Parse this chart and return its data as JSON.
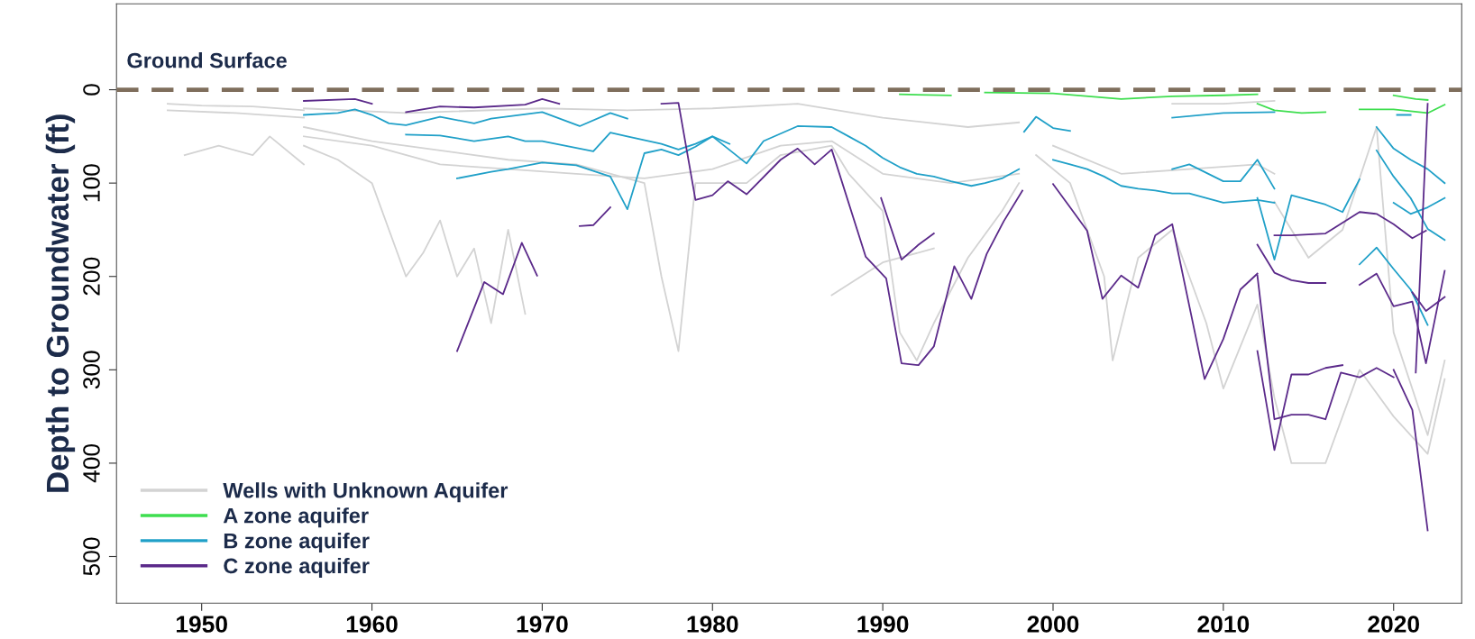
{
  "chart_data": {
    "type": "line",
    "xlabel": null,
    "ylabel": "Depth to Groundwater (ft)",
    "xlim": [
      1945,
      2024
    ],
    "xticks": [
      1950,
      1960,
      1970,
      1980,
      1990,
      2000,
      2010,
      2020
    ],
    "ylim": [
      550,
      -92
    ],
    "yticks": [
      0,
      100,
      200,
      300,
      400,
      500
    ],
    "grid": false,
    "legend": "bottom left",
    "marker": "none",
    "ref_lines": [
      {
        "axis": "y",
        "value": 0,
        "label": "Ground Surface",
        "color": "#7f6e5c",
        "line_style": "dashed"
      }
    ],
    "series": [
      {
        "name": "Wells with Unknown Aquifer",
        "color": "#d3d3d3",
        "x": [
          1948,
          1950,
          1953,
          1956
        ],
        "values": [
          15,
          17,
          18,
          22
        ]
      },
      {
        "color": "#d3d3d3",
        "x": [
          1948,
          1952,
          1956
        ],
        "values": [
          22,
          25,
          30
        ]
      },
      {
        "color": "#d3d3d3",
        "x": [
          1949,
          1951,
          1953,
          1954,
          1956
        ],
        "values": [
          70,
          60,
          70,
          50,
          80
        ]
      },
      {
        "color": "#d3d3d3",
        "x": [
          1956,
          1958,
          1960,
          1961,
          1962,
          1963,
          1964,
          1965,
          1966,
          1967,
          1968,
          1969
        ],
        "values": [
          60,
          75,
          100,
          150,
          200,
          175,
          140,
          200,
          170,
          250,
          150,
          240
        ]
      },
      {
        "color": "#d3d3d3",
        "x": [
          1956,
          1960,
          1964,
          1968,
          1972,
          1976,
          1977,
          1978,
          1979,
          1982,
          1984,
          1987,
          1988,
          1990,
          1991,
          1992,
          1993,
          1995,
          1997,
          1998
        ],
        "values": [
          40,
          55,
          65,
          75,
          80,
          100,
          200,
          280,
          100,
          100,
          70,
          60,
          90,
          130,
          260,
          290,
          250,
          180,
          130,
          100
        ]
      },
      {
        "color": "#d3d3d3",
        "x": [
          1956,
          1962,
          1970,
          1975,
          1980,
          1985,
          1990,
          1995,
          1998
        ],
        "values": [
          20,
          25,
          20,
          22,
          20,
          15,
          30,
          40,
          35
        ]
      },
      {
        "color": "#d3d3d3",
        "x": [
          1956,
          1960,
          1964,
          1968,
          1972,
          1976,
          1980,
          1984,
          1987,
          1990,
          1994,
          1998
        ],
        "values": [
          50,
          60,
          80,
          85,
          90,
          95,
          85,
          60,
          55,
          90,
          100,
          90
        ]
      },
      {
        "color": "#d3d3d3",
        "x": [
          1999,
          2001,
          2003,
          2003.5,
          2005,
          2007,
          2009,
          2010,
          2012,
          2013,
          2014,
          2016,
          2018,
          2020,
          2022,
          2023
        ],
        "values": [
          70,
          100,
          200,
          290,
          180,
          150,
          250,
          320,
          230,
          330,
          400,
          400,
          300,
          350,
          390,
          310
        ]
      },
      {
        "color": "#d3d3d3",
        "x": [
          2000,
          2004,
          2008,
          2012,
          2013
        ],
        "values": [
          60,
          90,
          85,
          80,
          90
        ]
      },
      {
        "color": "#d3d3d3",
        "x": [
          2013,
          2015,
          2017,
          2019,
          2020,
          2022,
          2023
        ],
        "values": [
          120,
          180,
          150,
          40,
          260,
          370,
          290
        ]
      },
      {
        "color": "#d3d3d3",
        "x": [
          2007,
          2010,
          2013
        ],
        "values": [
          15,
          15,
          12
        ]
      },
      {
        "color": "#d3d3d3",
        "x": [
          1987,
          1990,
          1993
        ],
        "values": [
          220,
          185,
          170
        ]
      },
      {
        "name": "A zone aquifer",
        "color": "#3ede4f",
        "x": [
          1991,
          1994
        ],
        "values": [
          5,
          6
        ]
      },
      {
        "color": "#3ede4f",
        "x": [
          1996,
          2000,
          2004,
          2007,
          2010,
          2012
        ],
        "values": [
          3,
          4,
          10,
          7,
          6,
          5
        ]
      },
      {
        "color": "#3ede4f",
        "x": [
          2012,
          2013,
          2014.6,
          2016
        ],
        "values": [
          15,
          22,
          25,
          24
        ]
      },
      {
        "color": "#3ede4f",
        "x": [
          2018,
          2020,
          2022,
          2023
        ],
        "values": [
          21,
          21,
          25,
          16
        ]
      },
      {
        "color": "#3ede4f",
        "x": [
          2020,
          2021.3,
          2022
        ],
        "values": [
          6,
          10,
          11
        ]
      },
      {
        "name": "B zone aquifer",
        "color": "#20a0c8",
        "x": [
          1956,
          1958,
          1959,
          1960,
          1961,
          1962,
          1964,
          1966,
          1967,
          1970,
          1972.2,
          1974,
          1975
        ],
        "values": [
          27,
          25,
          21,
          27,
          36,
          38,
          29,
          36,
          31,
          24,
          39,
          25,
          31
        ]
      },
      {
        "color": "#20a0c8",
        "x": [
          1962,
          1964,
          1966,
          1968,
          1969,
          1970,
          1973,
          1974,
          1975,
          1977,
          1978,
          1979,
          1980,
          1981
        ],
        "values": [
          48,
          49,
          55,
          50,
          55,
          55,
          66,
          46,
          50,
          58,
          64,
          58,
          50,
          58
        ]
      },
      {
        "color": "#20a0c8",
        "x": [
          1965,
          1967,
          1968,
          1970,
          1972,
          1974,
          1975,
          1976,
          1977,
          1978,
          1979,
          1980,
          1982,
          1983,
          1984,
          1985,
          1987,
          1988,
          1989,
          1990,
          1991,
          1992,
          1993,
          1994,
          1995.2,
          1996,
          1997,
          1998
        ],
        "values": [
          95,
          88,
          85,
          78,
          81,
          93,
          128,
          68,
          64,
          70,
          61,
          50,
          79,
          55,
          47,
          39,
          40,
          50,
          60,
          73,
          83,
          90,
          93,
          98,
          103,
          100,
          95,
          85
        ]
      },
      {
        "color": "#20a0c8",
        "x": [
          1998.3,
          1999,
          2000,
          2001
        ],
        "values": [
          45,
          29,
          41,
          44
        ]
      },
      {
        "color": "#20a0c8",
        "x": [
          2000,
          2001,
          2002,
          2003,
          2004,
          2005,
          2006,
          2007,
          2008,
          2010,
          2012,
          2013
        ],
        "values": [
          75,
          80,
          85,
          93,
          103,
          106,
          108,
          111,
          111,
          121,
          118,
          121
        ]
      },
      {
        "color": "#20a0c8",
        "x": [
          2007,
          2008,
          2010,
          2011,
          2012,
          2013
        ],
        "values": [
          85,
          80,
          98,
          98,
          75,
          106
        ]
      },
      {
        "color": "#20a0c8",
        "x": [
          2012,
          2013,
          2014,
          2016,
          2017,
          2018
        ],
        "values": [
          116,
          182,
          113,
          123,
          131,
          96
        ]
      },
      {
        "color": "#20a0c8",
        "x": [
          2019,
          2020,
          2021,
          2022,
          2023
        ],
        "values": [
          40,
          63,
          75,
          85,
          100
        ]
      },
      {
        "color": "#20a0c8",
        "x": [
          2019,
          2020,
          2021,
          2022,
          2023
        ],
        "values": [
          65,
          93,
          116,
          149,
          161
        ]
      },
      {
        "color": "#20a0c8",
        "x": [
          2018,
          2019,
          2020,
          2021,
          2022
        ],
        "values": [
          187,
          169,
          192,
          214,
          252
        ]
      },
      {
        "color": "#20a0c8",
        "x": [
          2020,
          2021,
          2022,
          2023
        ],
        "values": [
          121,
          133,
          126,
          116
        ]
      },
      {
        "color": "#20a0c8",
        "x": [
          2007,
          2010,
          2013
        ],
        "values": [
          30,
          25,
          24
        ]
      },
      {
        "color": "#20a0c8",
        "x": [
          2020.2,
          2021
        ],
        "values": [
          27,
          27
        ]
      },
      {
        "name": "C zone aquifer",
        "color": "#5b2a8a",
        "x": [
          1956,
          1959,
          1960
        ],
        "values": [
          12,
          10,
          15
        ]
      },
      {
        "color": "#5b2a8a",
        "x": [
          1962,
          1964,
          1966,
          1969,
          1970,
          1971
        ],
        "values": [
          24,
          18,
          19,
          16,
          10,
          15
        ]
      },
      {
        "color": "#5b2a8a",
        "x": [
          1965,
          1966.6,
          1967.7,
          1968.8,
          1969.7
        ],
        "values": [
          280,
          206,
          219,
          164,
          199
        ]
      },
      {
        "color": "#5b2a8a",
        "x": [
          1972.2,
          1973,
          1974
        ],
        "values": [
          146,
          145,
          126
        ]
      },
      {
        "color": "#5b2a8a",
        "x": [
          1977,
          1978,
          1979,
          1980,
          1980.9,
          1982,
          1984,
          1985,
          1986,
          1987,
          1989,
          1990.2,
          1991.1,
          1992.1,
          1993,
          1994.2,
          1995.2,
          1996.1,
          1997.1,
          1998.2
        ],
        "values": [
          15,
          14,
          118,
          113,
          98,
          112,
          75,
          63,
          80,
          64,
          179,
          202,
          293,
          295,
          275,
          189,
          224,
          176,
          141,
          108
        ]
      },
      {
        "color": "#5b2a8a",
        "x": [
          1989.9,
          1991.1,
          1992.1,
          1993
        ],
        "values": [
          116,
          182,
          166,
          154
        ]
      },
      {
        "color": "#5b2a8a",
        "x": [
          2000,
          2001,
          2002,
          2002.9,
          2004,
          2005,
          2006,
          2007,
          2008.9,
          2010,
          2011,
          2012
        ],
        "values": [
          101,
          126,
          151,
          224,
          199,
          212,
          156,
          144,
          310,
          267,
          214,
          197
        ]
      },
      {
        "color": "#5b2a8a",
        "x": [
          2012,
          2013,
          2014,
          2015,
          2016
        ],
        "values": [
          166,
          196,
          204,
          207,
          207
        ]
      },
      {
        "color": "#5b2a8a",
        "x": [
          2012,
          2013,
          2014,
          2015,
          2016,
          2016.9,
          2018,
          2019,
          2020
        ],
        "values": [
          199,
          353,
          348,
          348,
          353,
          303,
          308,
          298,
          308
        ]
      },
      {
        "color": "#5b2a8a",
        "x": [
          2012,
          2013,
          2014,
          2015,
          2016,
          2017
        ],
        "values": [
          280,
          386,
          305,
          305,
          298,
          295
        ]
      },
      {
        "color": "#5b2a8a",
        "x": [
          2013,
          2014,
          2016,
          2018,
          2019,
          2020,
          2021.1,
          2021.9
        ],
        "values": [
          156,
          156,
          154,
          131,
          133,
          144,
          159,
          151
        ]
      },
      {
        "color": "#5b2a8a",
        "x": [
          2018,
          2019,
          2020,
          2021.1,
          2021.9,
          2023
        ],
        "values": [
          209,
          197,
          232,
          227,
          293,
          194
        ]
      },
      {
        "color": "#5b2a8a",
        "x": [
          2020,
          2021.1,
          2022
        ],
        "values": [
          300,
          343,
          472
        ]
      },
      {
        "color": "#5b2a8a",
        "x": [
          2021.3,
          2022
        ],
        "values": [
          303,
          15
        ]
      },
      {
        "color": "#5b2a8a",
        "x": [
          2021.1,
          2021.9,
          2023
        ],
        "values": [
          217,
          237,
          222
        ]
      }
    ]
  }
}
